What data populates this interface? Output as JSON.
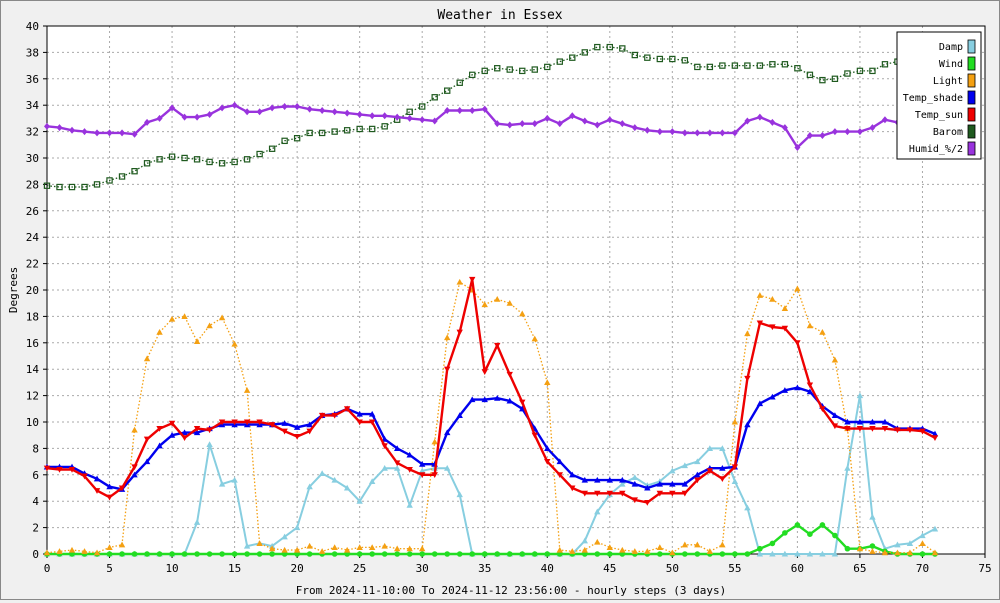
{
  "chart_data": {
    "type": "line",
    "title": "Weather in Essex",
    "xlabel": "From 2024-11-10:00 To 2024-11-12 23:56:00 - hourly steps (3 days)",
    "ylabel": "Degrees",
    "xlim": [
      0,
      75
    ],
    "ylim": [
      0,
      40
    ],
    "x_ticks": [
      0,
      5,
      10,
      15,
      20,
      25,
      30,
      35,
      40,
      45,
      50,
      55,
      60,
      65,
      70,
      75
    ],
    "y_ticks": [
      0,
      2,
      4,
      6,
      8,
      10,
      12,
      14,
      16,
      18,
      20,
      22,
      24,
      26,
      28,
      30,
      32,
      34,
      36,
      38,
      40
    ],
    "grid": true,
    "legend_position": "top-right",
    "series": [
      {
        "name": "Damp",
        "color": "#87cee0",
        "style": "solid",
        "marker": "triangle",
        "values": [
          0,
          0,
          0,
          0,
          0,
          0,
          0,
          0,
          0,
          0,
          0,
          0,
          2.4,
          8.3,
          5.3,
          5.6,
          0.6,
          0.8,
          0.6,
          1.3,
          2,
          5.1,
          6.1,
          5.6,
          5,
          4,
          5.5,
          6.5,
          6.5,
          3.7,
          6.3,
          6.5,
          6.5,
          4.5,
          0,
          0,
          0,
          0,
          0,
          0,
          0,
          0,
          0,
          1,
          3.2,
          4.5,
          5.3,
          5.8,
          5.2,
          5.5,
          6.3,
          6.7,
          7,
          8,
          8,
          5.5,
          3.5,
          0,
          0,
          0,
          0,
          0,
          0,
          0,
          6.5,
          12,
          2.8,
          0.4,
          0.7,
          0.8,
          1.4,
          1.9
        ]
      },
      {
        "name": "Wind",
        "color": "#22dd22",
        "style": "solid",
        "marker": "circle",
        "values": [
          0,
          0,
          0,
          0,
          0,
          0,
          0,
          0,
          0,
          0,
          0,
          0,
          0,
          0,
          0,
          0,
          0,
          0,
          0,
          0,
          0,
          0,
          0,
          0,
          0,
          0,
          0,
          0,
          0,
          0,
          0,
          0,
          0,
          0,
          0,
          0,
          0,
          0,
          0,
          0,
          0,
          0,
          0,
          0,
          0,
          0,
          0,
          0,
          0,
          0,
          0,
          0,
          0,
          0,
          0,
          0,
          0,
          0.4,
          0.8,
          1.6,
          2.2,
          1.5,
          2.2,
          1.4,
          0.4,
          0.4,
          0.6,
          0.2,
          0,
          0,
          0,
          0
        ]
      },
      {
        "name": "Light",
        "color": "#f4a012",
        "style": "dotted",
        "marker": "triangle",
        "values": [
          0.1,
          0.2,
          0.3,
          0.2,
          0.1,
          0.5,
          0.7,
          9.4,
          14.8,
          16.8,
          17.8,
          18,
          16.1,
          17.3,
          17.9,
          15.9,
          12.4,
          0.8,
          0.4,
          0.3,
          0.3,
          0.6,
          0.2,
          0.5,
          0.3,
          0.5,
          0.5,
          0.6,
          0.4,
          0.4,
          0.4,
          8.5,
          16.4,
          20.6,
          20,
          18.9,
          19.3,
          19,
          18.2,
          16.3,
          13,
          0.3,
          0.2,
          0.3,
          0.9,
          0.5,
          0.3,
          0.2,
          0.2,
          0.5,
          0.1,
          0.7,
          0.7,
          0.2,
          0.7,
          10,
          16.7,
          19.6,
          19.3,
          18.6,
          20.1,
          17.3,
          16.8,
          14.7,
          9.5,
          0.4,
          0.2,
          0.1,
          0.1,
          0.1,
          0.8,
          0.1
        ]
      },
      {
        "name": "Temp_shade",
        "color": "#0000ee",
        "style": "solid",
        "marker": "triangle",
        "values": [
          6.6,
          6.6,
          6.6,
          6.1,
          5.7,
          5.1,
          4.9,
          6,
          7,
          8.2,
          9,
          9.2,
          9.2,
          9.5,
          9.8,
          9.8,
          9.8,
          9.8,
          9.8,
          9.9,
          9.6,
          9.8,
          10.5,
          10.6,
          11,
          10.6,
          10.6,
          8.7,
          8,
          7.5,
          6.8,
          6.8,
          9.2,
          10.5,
          11.7,
          11.7,
          11.8,
          11.6,
          11,
          9.5,
          8,
          7,
          6,
          5.6,
          5.6,
          5.6,
          5.6,
          5.3,
          5,
          5.3,
          5.3,
          5.3,
          6,
          6.5,
          6.5,
          6.6,
          9.8,
          11.4,
          11.9,
          12.4,
          12.6,
          12.3,
          11.2,
          10.5,
          10,
          10,
          10,
          10,
          9.5,
          9.5,
          9.5,
          9.1
        ]
      },
      {
        "name": "Temp_sun",
        "color": "#ee0000",
        "style": "solid",
        "marker": "inverted-triangle",
        "values": [
          6.5,
          6.4,
          6.4,
          5.9,
          4.8,
          4.3,
          5,
          6.6,
          8.7,
          9.5,
          9.9,
          8.8,
          9.5,
          9.4,
          10,
          10,
          10,
          10,
          9.8,
          9.3,
          8.9,
          9.3,
          10.5,
          10.5,
          11,
          10,
          10,
          8.2,
          6.9,
          6.4,
          6,
          6,
          14,
          16.8,
          20.8,
          13.8,
          15.8,
          13.6,
          11.5,
          9,
          7,
          6,
          5,
          4.6,
          4.6,
          4.6,
          4.6,
          4.1,
          3.9,
          4.6,
          4.6,
          4.6,
          5.6,
          6.3,
          5.7,
          6.6,
          13.3,
          17.5,
          17.2,
          17.1,
          16,
          12.8,
          11,
          9.7,
          9.5,
          9.5,
          9.5,
          9.5,
          9.4,
          9.4,
          9.3,
          8.8
        ]
      },
      {
        "name": "Barom",
        "color": "#1f5a1f",
        "style": "dotted",
        "marker": "square",
        "values": [
          27.9,
          27.8,
          27.8,
          27.8,
          28,
          28.3,
          28.6,
          29,
          29.6,
          29.9,
          30.1,
          30,
          29.9,
          29.7,
          29.6,
          29.7,
          29.9,
          30.3,
          30.7,
          31.3,
          31.5,
          31.9,
          31.9,
          32,
          32.1,
          32.2,
          32.2,
          32.4,
          32.9,
          33.5,
          33.9,
          34.6,
          35.1,
          35.7,
          36.3,
          36.6,
          36.8,
          36.7,
          36.6,
          36.7,
          36.9,
          37.3,
          37.6,
          38,
          38.4,
          38.4,
          38.3,
          37.8,
          37.6,
          37.5,
          37.5,
          37.4,
          36.9,
          36.9,
          37,
          37,
          37,
          37,
          37.1,
          37.1,
          36.8,
          36.3,
          35.9,
          36,
          36.4,
          36.6,
          36.6,
          37.1,
          37.3,
          37.4
        ]
      },
      {
        "name": "Humid_%/2",
        "color": "#9933dd",
        "style": "solid",
        "marker": "star",
        "values": [
          32.4,
          32.3,
          32.1,
          32,
          31.9,
          31.9,
          31.9,
          31.8,
          32.7,
          33,
          33.8,
          33.1,
          33.1,
          33.3,
          33.8,
          34,
          33.5,
          33.5,
          33.8,
          33.9,
          33.9,
          33.7,
          33.6,
          33.5,
          33.4,
          33.3,
          33.2,
          33.2,
          33.1,
          33,
          32.9,
          32.8,
          33.6,
          33.6,
          33.6,
          33.7,
          32.6,
          32.5,
          32.6,
          32.6,
          33,
          32.6,
          33.2,
          32.8,
          32.5,
          32.9,
          32.6,
          32.3,
          32.1,
          32,
          32,
          31.9,
          31.9,
          31.9,
          31.9,
          31.9,
          32.8,
          33.1,
          32.7,
          32.3,
          30.8,
          31.7,
          31.7,
          32,
          32,
          32,
          32.3,
          32.9,
          32.7
        ]
      }
    ]
  }
}
